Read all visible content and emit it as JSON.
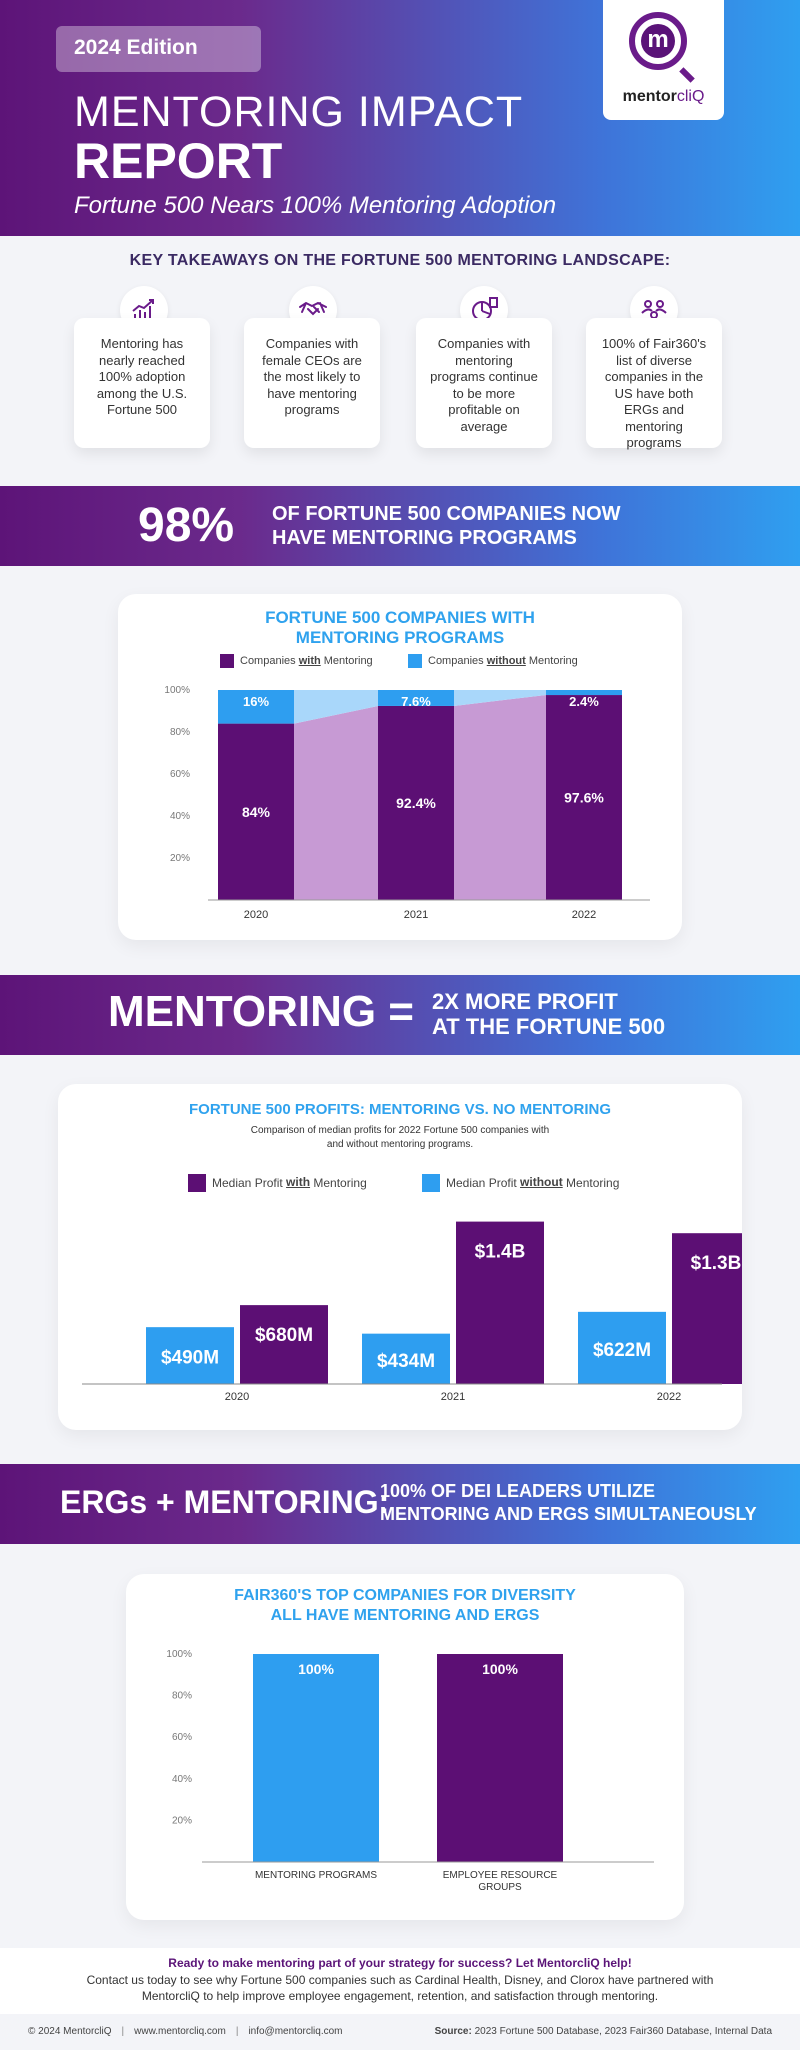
{
  "header": {
    "edition": "2024 Edition",
    "title_line1": "MENTORING IMPACT",
    "title_line2": "REPORT",
    "subtitle": "Fortune 500 Nears 100% Mentoring Adoption",
    "logo_letter": "m",
    "logo_text_main": "mentor",
    "logo_text_accent": "cliQ"
  },
  "takeaways": {
    "title": "KEY TAKEAWAYS ON THE FORTUNE 500 MENTORING LANDSCAPE:",
    "cards": [
      {
        "icon": "growth-chart-icon",
        "text": "Mentoring has nearly reached 100% adoption among the U.S. Fortune 500"
      },
      {
        "icon": "handshake-icon",
        "text": "Companies with female CEOs are the most likely to have mentoring programs"
      },
      {
        "icon": "pie-chart-icon",
        "text": "Companies with mentoring programs continue to be more profitable on average"
      },
      {
        "icon": "people-network-icon",
        "text": "100% of Fair360's list of diverse companies in the US have both ERGs and mentoring programs"
      }
    ]
  },
  "banner1": {
    "big": "98%",
    "line1": "OF FORTUNE 500 COMPANIES NOW",
    "line2": "HAVE MENTORING PROGRAMS"
  },
  "banner2": {
    "big": "MENTORING =",
    "line1": "2X MORE PROFIT",
    "line2": "AT THE FORTUNE 500"
  },
  "banner3": {
    "big": "ERGs + MENTORING:",
    "line1": "100% OF DEI LEADERS UTILIZE",
    "line2": "MENTORING AND ERGS SIMULTANEOUSLY"
  },
  "chart1_title": {
    "line1": "FORTUNE 500 COMPANIES WITH",
    "line2": "MENTORING PROGRAMS"
  },
  "chart1_legend": {
    "with_pre": "Companies ",
    "with_bold": "with",
    "with_post": " Mentoring",
    "without_pre": "Companies ",
    "without_bold": "without",
    "without_post": " Mentoring"
  },
  "chart2_title": "FORTUNE 500 PROFITS: MENTORING VS. NO MENTORING",
  "chart2_subtitle": {
    "line1": "Comparison of median profits for 2022 Fortune 500 companies with",
    "line2": "and without mentoring programs."
  },
  "chart2_legend": {
    "with_pre": "Median Profit ",
    "with_bold": "with",
    "with_post": " Mentoring",
    "without_pre": "Median Profit ",
    "without_bold": "without",
    "without_post": " Mentoring"
  },
  "chart3_title": {
    "line1": "FAIR360'S TOP COMPANIES FOR DIVERSITY",
    "line2": "ALL HAVE MENTORING AND ERGS"
  },
  "chart_data": [
    {
      "type": "bar",
      "stacked": true,
      "categories": [
        "2020",
        "2021",
        "2022"
      ],
      "series": [
        {
          "name": "Companies with Mentoring",
          "values": [
            84,
            92.4,
            97.6
          ],
          "labels": [
            "84%",
            "92.4%",
            "97.6%"
          ],
          "color": "#5c0f74"
        },
        {
          "name": "Companies without Mentoring",
          "values": [
            16,
            7.6,
            2.4
          ],
          "labels": [
            "16%",
            "7.6%",
            "2.4%"
          ],
          "color": "#2e9ef0"
        }
      ],
      "yticks": [
        "20%",
        "40%",
        "60%",
        "80%",
        "100%"
      ],
      "ylim": [
        0,
        100
      ]
    },
    {
      "type": "bar",
      "categories": [
        "2020",
        "2021",
        "2022"
      ],
      "series": [
        {
          "name": "Median Profit without Mentoring",
          "values": [
            490,
            434,
            622
          ],
          "labels": [
            "$490M",
            "$434M",
            "$622M"
          ],
          "color": "#2e9ef0"
        },
        {
          "name": "Median Profit with Mentoring",
          "values": [
            680,
            1400,
            1300
          ],
          "labels": [
            "$680M",
            "$1.4B",
            "$1.3B"
          ],
          "color": "#5c0f74"
        }
      ],
      "ylim": [
        0,
        1500
      ]
    },
    {
      "type": "bar",
      "categories": [
        "MENTORING PROGRAMS",
        "EMPLOYEE RESOURCE GROUPS"
      ],
      "values": [
        100,
        100
      ],
      "labels": [
        "100%",
        "100%"
      ],
      "colors": [
        "#2e9ef0",
        "#5c0f74"
      ],
      "yticks": [
        "20%",
        "40%",
        "60%",
        "80%",
        "100%"
      ],
      "ylim": [
        0,
        100
      ]
    }
  ],
  "cta": {
    "title": "Ready to make mentoring part of your strategy for success? Let MentorcliQ help!",
    "body": "Contact us today to see why Fortune 500 companies such as Cardinal Health, Disney, and Clorox have partnered with MentorcliQ to help improve employee engagement, retention, and satisfaction through mentoring."
  },
  "footer": {
    "copyright": "© 2024 MentorcliQ",
    "website": "www.mentorcliq.com",
    "email": "info@mentorcliq.com",
    "source_label": "Source:",
    "source_text": "2023 Fortune 500 Database, 2023 Fair360 Database, Internal Data"
  }
}
